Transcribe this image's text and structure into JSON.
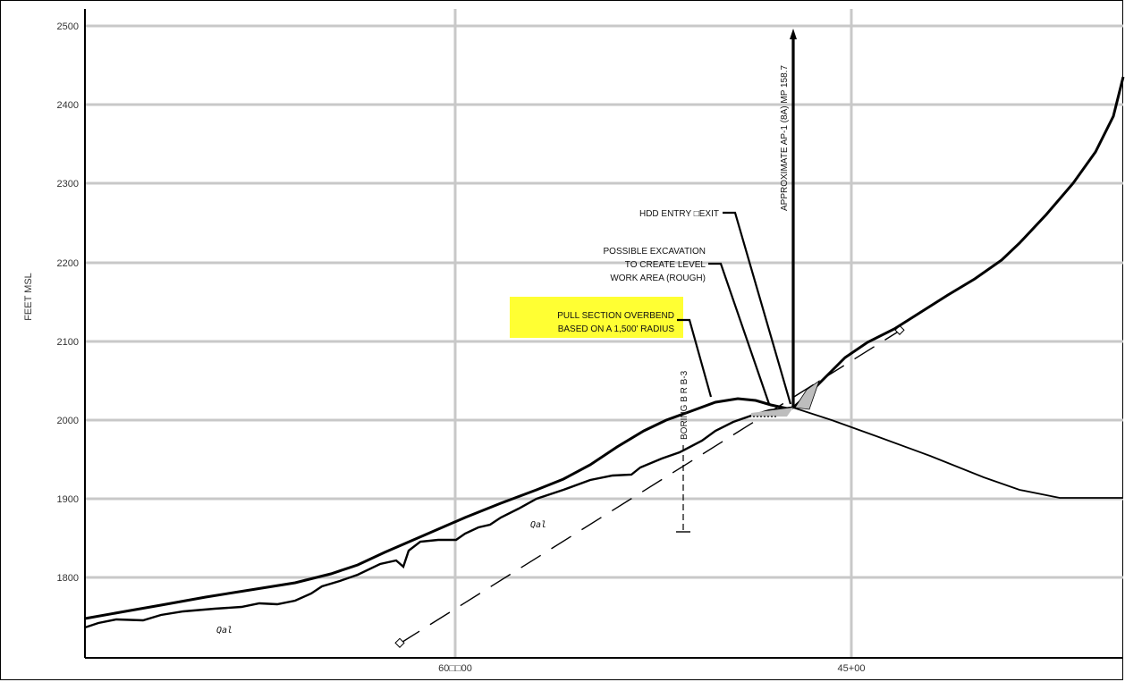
{
  "y_axis": {
    "label": "FEET MSL",
    "ticks": [
      "2500",
      "2400",
      "2300",
      "2200",
      "2100",
      "2000",
      "1900",
      "1800"
    ]
  },
  "x_axis": {
    "ticks": [
      "60□□00",
      "45+00"
    ]
  },
  "annotations": {
    "ap_marker": "APPROXIMATE AP-1 (8A) MP 158.7",
    "hdd_entry": "HDD ENTRY □EXIT",
    "excavation": [
      "POSSIBLE EXCAVATION",
      "TO CREATE LEVEL",
      "WORK AREA (ROUGH)"
    ],
    "overbend": [
      "PULL SECTION OVERBEND",
      "BASED ON A 1,500' RADIUS"
    ],
    "boring": "BORING B R B-3"
  },
  "geology": {
    "qal_1": "Qal",
    "qal_2": "Qal"
  },
  "colors": {
    "grid": "#c8c8c8",
    "highlight": "#ffff33",
    "line": "#000000",
    "shade": "#bdbdbd"
  }
}
